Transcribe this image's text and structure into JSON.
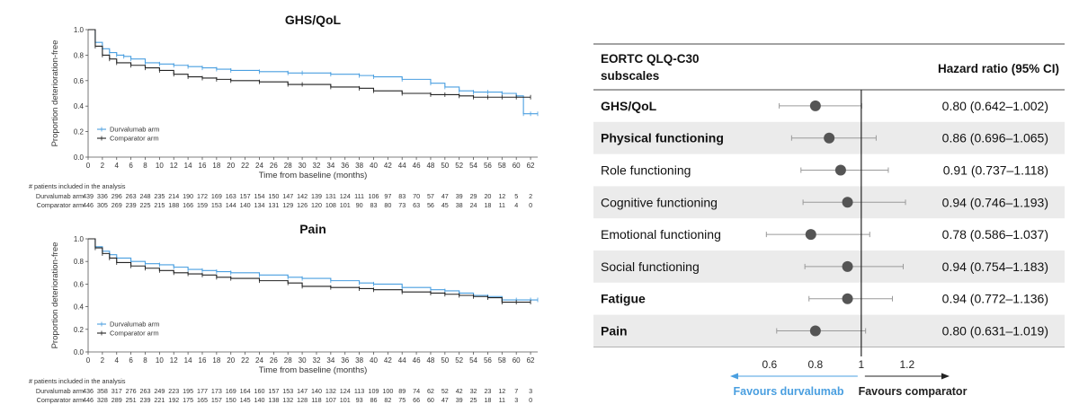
{
  "chart_data": [
    {
      "type": "line",
      "title": "GHS/QoL",
      "xlabel": "Time from baseline (months)",
      "ylabel": "Proportion deterioration-free",
      "xlim": [
        0,
        63
      ],
      "ylim": [
        0,
        1.0
      ],
      "xticks": [
        0,
        2,
        4,
        6,
        8,
        10,
        12,
        14,
        16,
        18,
        20,
        22,
        24,
        26,
        28,
        30,
        32,
        34,
        36,
        38,
        40,
        42,
        44,
        46,
        48,
        50,
        52,
        54,
        56,
        58,
        60,
        62
      ],
      "yticks": [
        "0.0",
        "0.2",
        "0.4",
        "0.6",
        "0.8",
        "1.0"
      ],
      "legend": {
        "placement": "bottom-left",
        "entries": [
          "Durvalumab arm",
          "Comparator arm"
        ]
      },
      "series": [
        {
          "name": "Durvalumab arm",
          "color": "#4a9fe0",
          "x": [
            0,
            1,
            2,
            3,
            4,
            5,
            6,
            8,
            10,
            12,
            14,
            16,
            18,
            20,
            24,
            28,
            30,
            34,
            38,
            40,
            44,
            48,
            50,
            52,
            54,
            56,
            58,
            60,
            61,
            62,
            63
          ],
          "y": [
            1.0,
            0.9,
            0.85,
            0.82,
            0.8,
            0.79,
            0.77,
            0.74,
            0.73,
            0.72,
            0.71,
            0.7,
            0.69,
            0.68,
            0.67,
            0.66,
            0.66,
            0.65,
            0.64,
            0.63,
            0.61,
            0.58,
            0.55,
            0.52,
            0.51,
            0.51,
            0.5,
            0.48,
            0.34,
            0.34,
            0.34
          ]
        },
        {
          "name": "Comparator arm",
          "color": "#222222",
          "x": [
            0,
            1,
            2,
            3,
            4,
            6,
            8,
            10,
            12,
            14,
            16,
            18,
            20,
            24,
            28,
            30,
            34,
            38,
            40,
            44,
            48,
            50,
            52,
            54,
            56,
            58,
            60,
            62
          ],
          "y": [
            1.0,
            0.87,
            0.8,
            0.77,
            0.74,
            0.72,
            0.7,
            0.68,
            0.65,
            0.63,
            0.62,
            0.61,
            0.6,
            0.59,
            0.57,
            0.57,
            0.55,
            0.54,
            0.52,
            0.5,
            0.49,
            0.49,
            0.48,
            0.47,
            0.47,
            0.47,
            0.47,
            0.47
          ]
        }
      ],
      "risk_table": {
        "heading": "# patients included in the analysis",
        "rows": [
          {
            "label": "Durvalumab arm",
            "color": "#4a9fe0",
            "values": [
              "439",
              "336",
              "296",
              "263",
              "248",
              "235",
              "214",
              "190",
              "172",
              "169",
              "163",
              "157",
              "154",
              "150",
              "147",
              "142",
              "139",
              "131",
              "124",
              "111",
              "106",
              "97",
              "83",
              "70",
              "57",
              "47",
              "39",
              "29",
              "20",
              "12",
              "5",
              "2"
            ]
          },
          {
            "label": "Comparator arm",
            "color": "#222222",
            "values": [
              "446",
              "305",
              "269",
              "239",
              "225",
              "215",
              "188",
              "166",
              "159",
              "153",
              "144",
              "140",
              "134",
              "131",
              "129",
              "126",
              "120",
              "108",
              "101",
              "90",
              "83",
              "80",
              "73",
              "63",
              "56",
              "45",
              "38",
              "24",
              "18",
              "11",
              "4",
              "0"
            ]
          }
        ]
      }
    },
    {
      "type": "line",
      "title": "Pain",
      "xlabel": "Time from baseline (months)",
      "ylabel": "Proportion deterioration-free",
      "xlim": [
        0,
        63
      ],
      "ylim": [
        0,
        1.0
      ],
      "xticks": [
        0,
        2,
        4,
        6,
        8,
        10,
        12,
        14,
        16,
        18,
        20,
        22,
        24,
        26,
        28,
        30,
        32,
        34,
        36,
        38,
        40,
        42,
        44,
        46,
        48,
        50,
        52,
        54,
        56,
        58,
        60,
        62
      ],
      "yticks": [
        "0.0",
        "0.2",
        "0.4",
        "0.6",
        "0.8",
        "1.0"
      ],
      "legend": {
        "placement": "bottom-left",
        "entries": [
          "Durvalumab arm",
          "Comparator arm"
        ]
      },
      "series": [
        {
          "name": "Durvalumab arm",
          "color": "#4a9fe0",
          "x": [
            0,
            1,
            2,
            3,
            4,
            6,
            8,
            10,
            12,
            14,
            16,
            18,
            20,
            24,
            28,
            30,
            34,
            38,
            40,
            44,
            48,
            50,
            52,
            54,
            56,
            58,
            60,
            62,
            63
          ],
          "y": [
            1.0,
            0.93,
            0.89,
            0.86,
            0.83,
            0.8,
            0.78,
            0.77,
            0.75,
            0.73,
            0.72,
            0.71,
            0.7,
            0.68,
            0.66,
            0.65,
            0.63,
            0.61,
            0.6,
            0.57,
            0.55,
            0.54,
            0.52,
            0.5,
            0.49,
            0.46,
            0.46,
            0.46,
            0.46
          ]
        },
        {
          "name": "Comparator arm",
          "color": "#222222",
          "x": [
            0,
            1,
            2,
            3,
            4,
            6,
            8,
            10,
            12,
            14,
            16,
            18,
            20,
            24,
            28,
            30,
            34,
            38,
            40,
            44,
            48,
            50,
            52,
            54,
            56,
            58,
            60,
            62
          ],
          "y": [
            1.0,
            0.92,
            0.87,
            0.83,
            0.79,
            0.76,
            0.74,
            0.72,
            0.7,
            0.69,
            0.68,
            0.66,
            0.65,
            0.63,
            0.61,
            0.58,
            0.57,
            0.56,
            0.55,
            0.53,
            0.52,
            0.51,
            0.5,
            0.49,
            0.48,
            0.44,
            0.44,
            0.44
          ]
        }
      ],
      "risk_table": {
        "heading": "# patients included in the analysis",
        "rows": [
          {
            "label": "Durvalumab arm",
            "color": "#4a9fe0",
            "values": [
              "436",
              "358",
              "317",
              "276",
              "263",
              "249",
              "223",
              "195",
              "177",
              "173",
              "169",
              "164",
              "160",
              "157",
              "153",
              "147",
              "140",
              "132",
              "124",
              "113",
              "109",
              "100",
              "89",
              "74",
              "62",
              "52",
              "42",
              "32",
              "23",
              "12",
              "7",
              "3"
            ]
          },
          {
            "label": "Comparator arm",
            "color": "#222222",
            "values": [
              "446",
              "328",
              "289",
              "251",
              "239",
              "221",
              "192",
              "175",
              "165",
              "157",
              "150",
              "145",
              "140",
              "138",
              "132",
              "128",
              "118",
              "107",
              "101",
              "93",
              "86",
              "82",
              "75",
              "66",
              "60",
              "47",
              "39",
              "25",
              "18",
              "11",
              "3",
              "0"
            ]
          }
        ]
      }
    },
    {
      "type": "forest",
      "header_left": [
        "EORTC QLQ-C30",
        "subscales"
      ],
      "header_right": "Hazard ratio (95% CI)",
      "xticks": [
        {
          "value": 0.6,
          "label": "0.6"
        },
        {
          "value": 0.8,
          "label": "0.8"
        },
        {
          "value": 1.0,
          "label": "1"
        },
        {
          "value": 1.2,
          "label": "1.2"
        }
      ],
      "xlim": [
        0.42,
        1.44
      ],
      "reference_line": 1.0,
      "favours_left": "Favours durvalumab",
      "favours_right": "Favours comparator",
      "colors": {
        "left": "#4a9fe0",
        "right": "#222222",
        "band": "#ebebeb",
        "marker": "#555555"
      },
      "rows": [
        {
          "label": "GHS/QoL",
          "bold": true,
          "hr": 0.8,
          "lo": 0.642,
          "hi": 1.002,
          "text": "0.80 (0.642–1.002)"
        },
        {
          "label": "Physical functioning",
          "bold": true,
          "hr": 0.86,
          "lo": 0.696,
          "hi": 1.065,
          "text": "0.86 (0.696–1.065)"
        },
        {
          "label": "Role functioning",
          "bold": false,
          "hr": 0.91,
          "lo": 0.737,
          "hi": 1.118,
          "text": "0.91 (0.737–1.118)"
        },
        {
          "label": "Cognitive functioning",
          "bold": false,
          "hr": 0.94,
          "lo": 0.746,
          "hi": 1.193,
          "text": "0.94 (0.746–1.193)"
        },
        {
          "label": "Emotional functioning",
          "bold": false,
          "hr": 0.78,
          "lo": 0.586,
          "hi": 1.037,
          "text": "0.78 (0.586–1.037)"
        },
        {
          "label": "Social functioning",
          "bold": false,
          "hr": 0.94,
          "lo": 0.754,
          "hi": 1.183,
          "text": "0.94 (0.754–1.183)"
        },
        {
          "label": "Fatigue",
          "bold": true,
          "hr": 0.94,
          "lo": 0.772,
          "hi": 1.136,
          "text": "0.94 (0.772–1.136)"
        },
        {
          "label": "Pain",
          "bold": true,
          "hr": 0.8,
          "lo": 0.631,
          "hi": 1.019,
          "text": "0.80 (0.631–1.019)"
        }
      ]
    }
  ]
}
